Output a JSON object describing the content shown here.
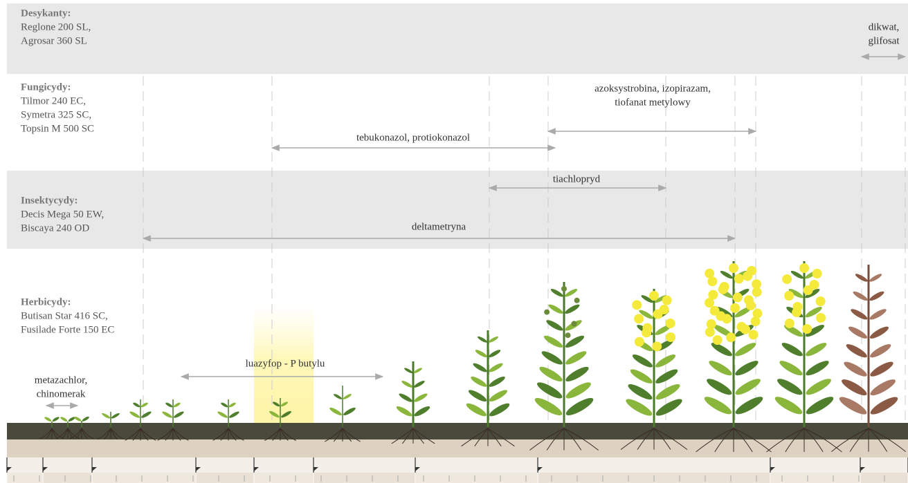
{
  "groups": [
    {
      "title": "Desykanty:",
      "products": [
        "Reglone 200 SL,",
        "Agrosar 360 SL"
      ]
    },
    {
      "title": "Fungicydy:",
      "products": [
        "Tilmor 240 EC,",
        "Symetra 325 SC,",
        "Topsin M 500 SC"
      ]
    },
    {
      "title": "Insektycydy:",
      "products": [
        "Decis Mega 50 EW,",
        "Biscaya 240 OD"
      ]
    },
    {
      "title": "Herbicydy:",
      "products": [
        "Butisan Star 416 SC,",
        "Fusilade Forte 150 EC"
      ]
    }
  ],
  "treatments": [
    {
      "lines": [
        "dikwat,",
        "glifosat"
      ]
    },
    {
      "lines": [
        "azoksystrobina, izopirazam,",
        "tiofanat metylowy"
      ]
    },
    {
      "lines": [
        "tebukonazol, protiokonazol"
      ]
    },
    {
      "lines": [
        "tiachlopryd"
      ]
    },
    {
      "lines": [
        "deltametryna"
      ]
    },
    {
      "lines": [
        "luazyfop - P butylu"
      ]
    },
    {
      "lines": [
        "metazachlor,",
        "chinomerak"
      ]
    }
  ]
}
